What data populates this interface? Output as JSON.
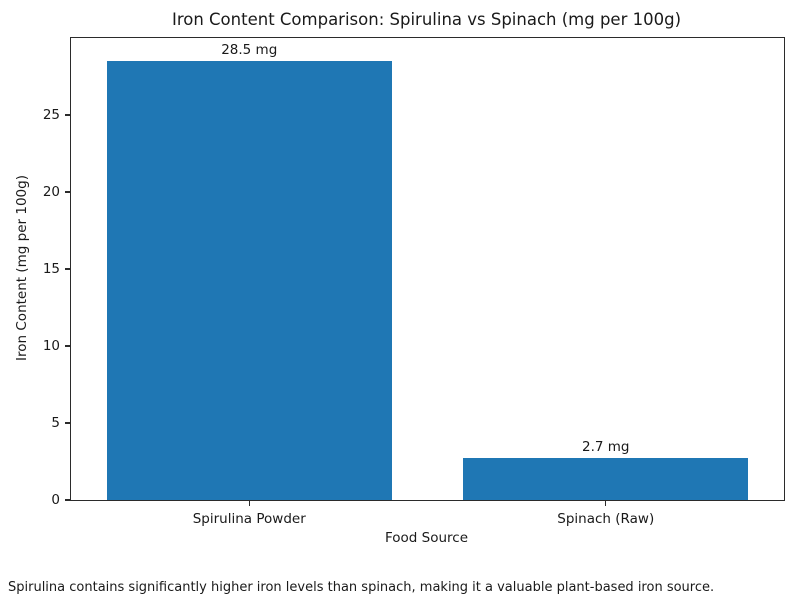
{
  "chart_data": {
    "type": "bar",
    "title": "Iron Content Comparison: Spirulina vs Spinach (mg per 100g)",
    "categories": [
      "Spirulina Powder",
      "Spinach (Raw)"
    ],
    "values": [
      28.5,
      2.7
    ],
    "value_labels": [
      "28.5 mg",
      "2.7 mg"
    ],
    "xlabel": "Food Source",
    "ylabel": "Iron Content (mg per 100g)",
    "ylim": [
      0,
      30
    ],
    "yticks": [
      0,
      5,
      10,
      15,
      20,
      25
    ],
    "bar_color": "#1f77b4",
    "grid": false,
    "legend": "none"
  },
  "caption": "Spirulina contains significantly higher iron levels than spinach, making it a valuable plant-based iron source."
}
